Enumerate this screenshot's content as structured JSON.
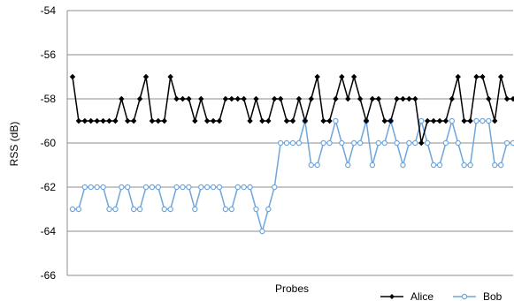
{
  "chart_data": {
    "type": "line",
    "title": "",
    "xlabel": "Probes",
    "ylabel": "RSS (dB)",
    "ylim": [
      -66,
      -54
    ],
    "yticks": [
      -54,
      -56,
      -58,
      -60,
      -62,
      -64,
      -66
    ],
    "grid": "horizontal",
    "legend_position": "bottom-right",
    "x": [
      1,
      2,
      3,
      4,
      5,
      6,
      7,
      8,
      9,
      10,
      11,
      12,
      13,
      14,
      15,
      16,
      17,
      18,
      19,
      20,
      21,
      22,
      23,
      24,
      25,
      26,
      27,
      28,
      29,
      30,
      31,
      32,
      33,
      34,
      35,
      36,
      37,
      38,
      39,
      40,
      41,
      42,
      43,
      44,
      45,
      46,
      47,
      48,
      49,
      50,
      51,
      52,
      53,
      54,
      55,
      56,
      57,
      58,
      59,
      60,
      61,
      62,
      63,
      64,
      65,
      66,
      67,
      68,
      69,
      70,
      71,
      72,
      73
    ],
    "series": [
      {
        "name": "Alice",
        "color": "#000000",
        "marker": "diamond",
        "values": [
          -57,
          -59,
          -59,
          -59,
          -59,
          -59,
          -59,
          -59,
          -58,
          -59,
          -59,
          -58,
          -57,
          -59,
          -59,
          -59,
          -57,
          -58,
          -58,
          -58,
          -59,
          -58,
          -59,
          -59,
          -59,
          -58,
          -58,
          -58,
          -58,
          -59,
          -58,
          -59,
          -59,
          -58,
          -58,
          -59,
          -59,
          -58,
          -59,
          -58,
          -57,
          -59,
          -59,
          -58,
          -57,
          -58,
          -57,
          -58,
          -59,
          -58,
          -58,
          -59,
          -59,
          -58,
          -58,
          -58,
          -58,
          -60,
          -59,
          -59,
          -59,
          -59,
          -58,
          -57,
          -59,
          -59,
          -57,
          -57,
          -58,
          -59,
          -57,
          -58,
          -58
        ]
      },
      {
        "name": "Bob",
        "color": "#6fa6dc",
        "marker": "circle",
        "values": [
          -63,
          -63,
          -62,
          -62,
          -62,
          -62,
          -63,
          -63,
          -62,
          -62,
          -63,
          -63,
          -62,
          -62,
          -62,
          -63,
          -63,
          -62,
          -62,
          -62,
          -63,
          -62,
          -62,
          -62,
          -62,
          -63,
          -63,
          -62,
          -62,
          -62,
          -63,
          -64,
          -63,
          -62,
          -60,
          -60,
          -60,
          -60,
          -59,
          -61,
          -61,
          -60,
          -60,
          -59,
          -60,
          -61,
          -60,
          -60,
          -59,
          -61,
          -60,
          -60,
          -59,
          -60,
          -61,
          -60,
          -60,
          -59,
          -60,
          -61,
          -61,
          -60,
          -59,
          -60,
          -61,
          -61,
          -59,
          -59,
          -59,
          -61,
          -61,
          -60,
          -60
        ]
      }
    ]
  }
}
